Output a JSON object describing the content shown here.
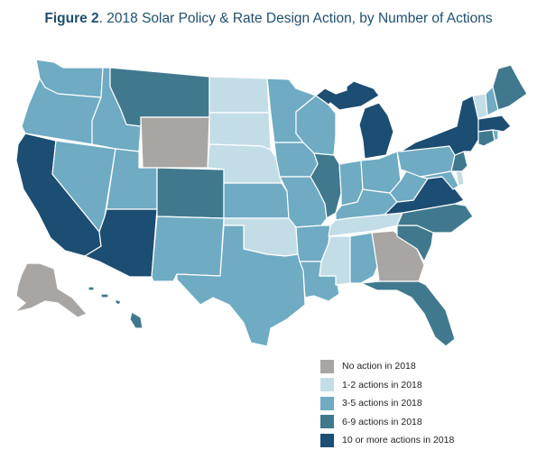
{
  "title": {
    "figure_label": "Figure 2",
    "text": ". 2018 Solar Policy & Rate Design Action, by Number of Actions"
  },
  "colors": {
    "none": "#a8a5a3",
    "low": "#c3dde7",
    "mid": "#6fabc3",
    "high": "#40798e",
    "top": "#1c4d72",
    "border": "#ffffff"
  },
  "legend": [
    {
      "key": "none",
      "label": "No action in 2018"
    },
    {
      "key": "low",
      "label": "1-2 actions in 2018"
    },
    {
      "key": "mid",
      "label": "3-5 actions in 2018"
    },
    {
      "key": "high",
      "label": "6-9 actions in 2018"
    },
    {
      "key": "top",
      "label": "10 or more actions in 2018"
    }
  ],
  "states": {
    "AK": "none",
    "WY": "none",
    "GA": "none",
    "ND": "low",
    "SD": "low",
    "NE": "low",
    "OK": "low",
    "TN": "low",
    "MS": "low",
    "VT": "low",
    "DE": "low",
    "WA": "mid",
    "OR": "mid",
    "ID": "mid",
    "NV": "mid",
    "UT": "mid",
    "NM": "mid",
    "TX": "mid",
    "KS": "mid",
    "MN": "mid",
    "IA": "mid",
    "MO": "mid",
    "AR": "mid",
    "LA": "mid",
    "WI": "mid",
    "IN": "mid",
    "OH": "mid",
    "KY": "mid",
    "WV": "mid",
    "PA": "mid",
    "AL": "mid",
    "NH": "mid",
    "RI": "mid",
    "MD": "mid",
    "MT": "high",
    "CO": "high",
    "IL": "high",
    "NC": "high",
    "SC": "high",
    "FL": "high",
    "ME": "high",
    "NJ": "high",
    "CT": "high",
    "HI": "high",
    "CA": "top",
    "AZ": "top",
    "MI": "top",
    "NY": "top",
    "VA": "top",
    "MA": "top"
  }
}
